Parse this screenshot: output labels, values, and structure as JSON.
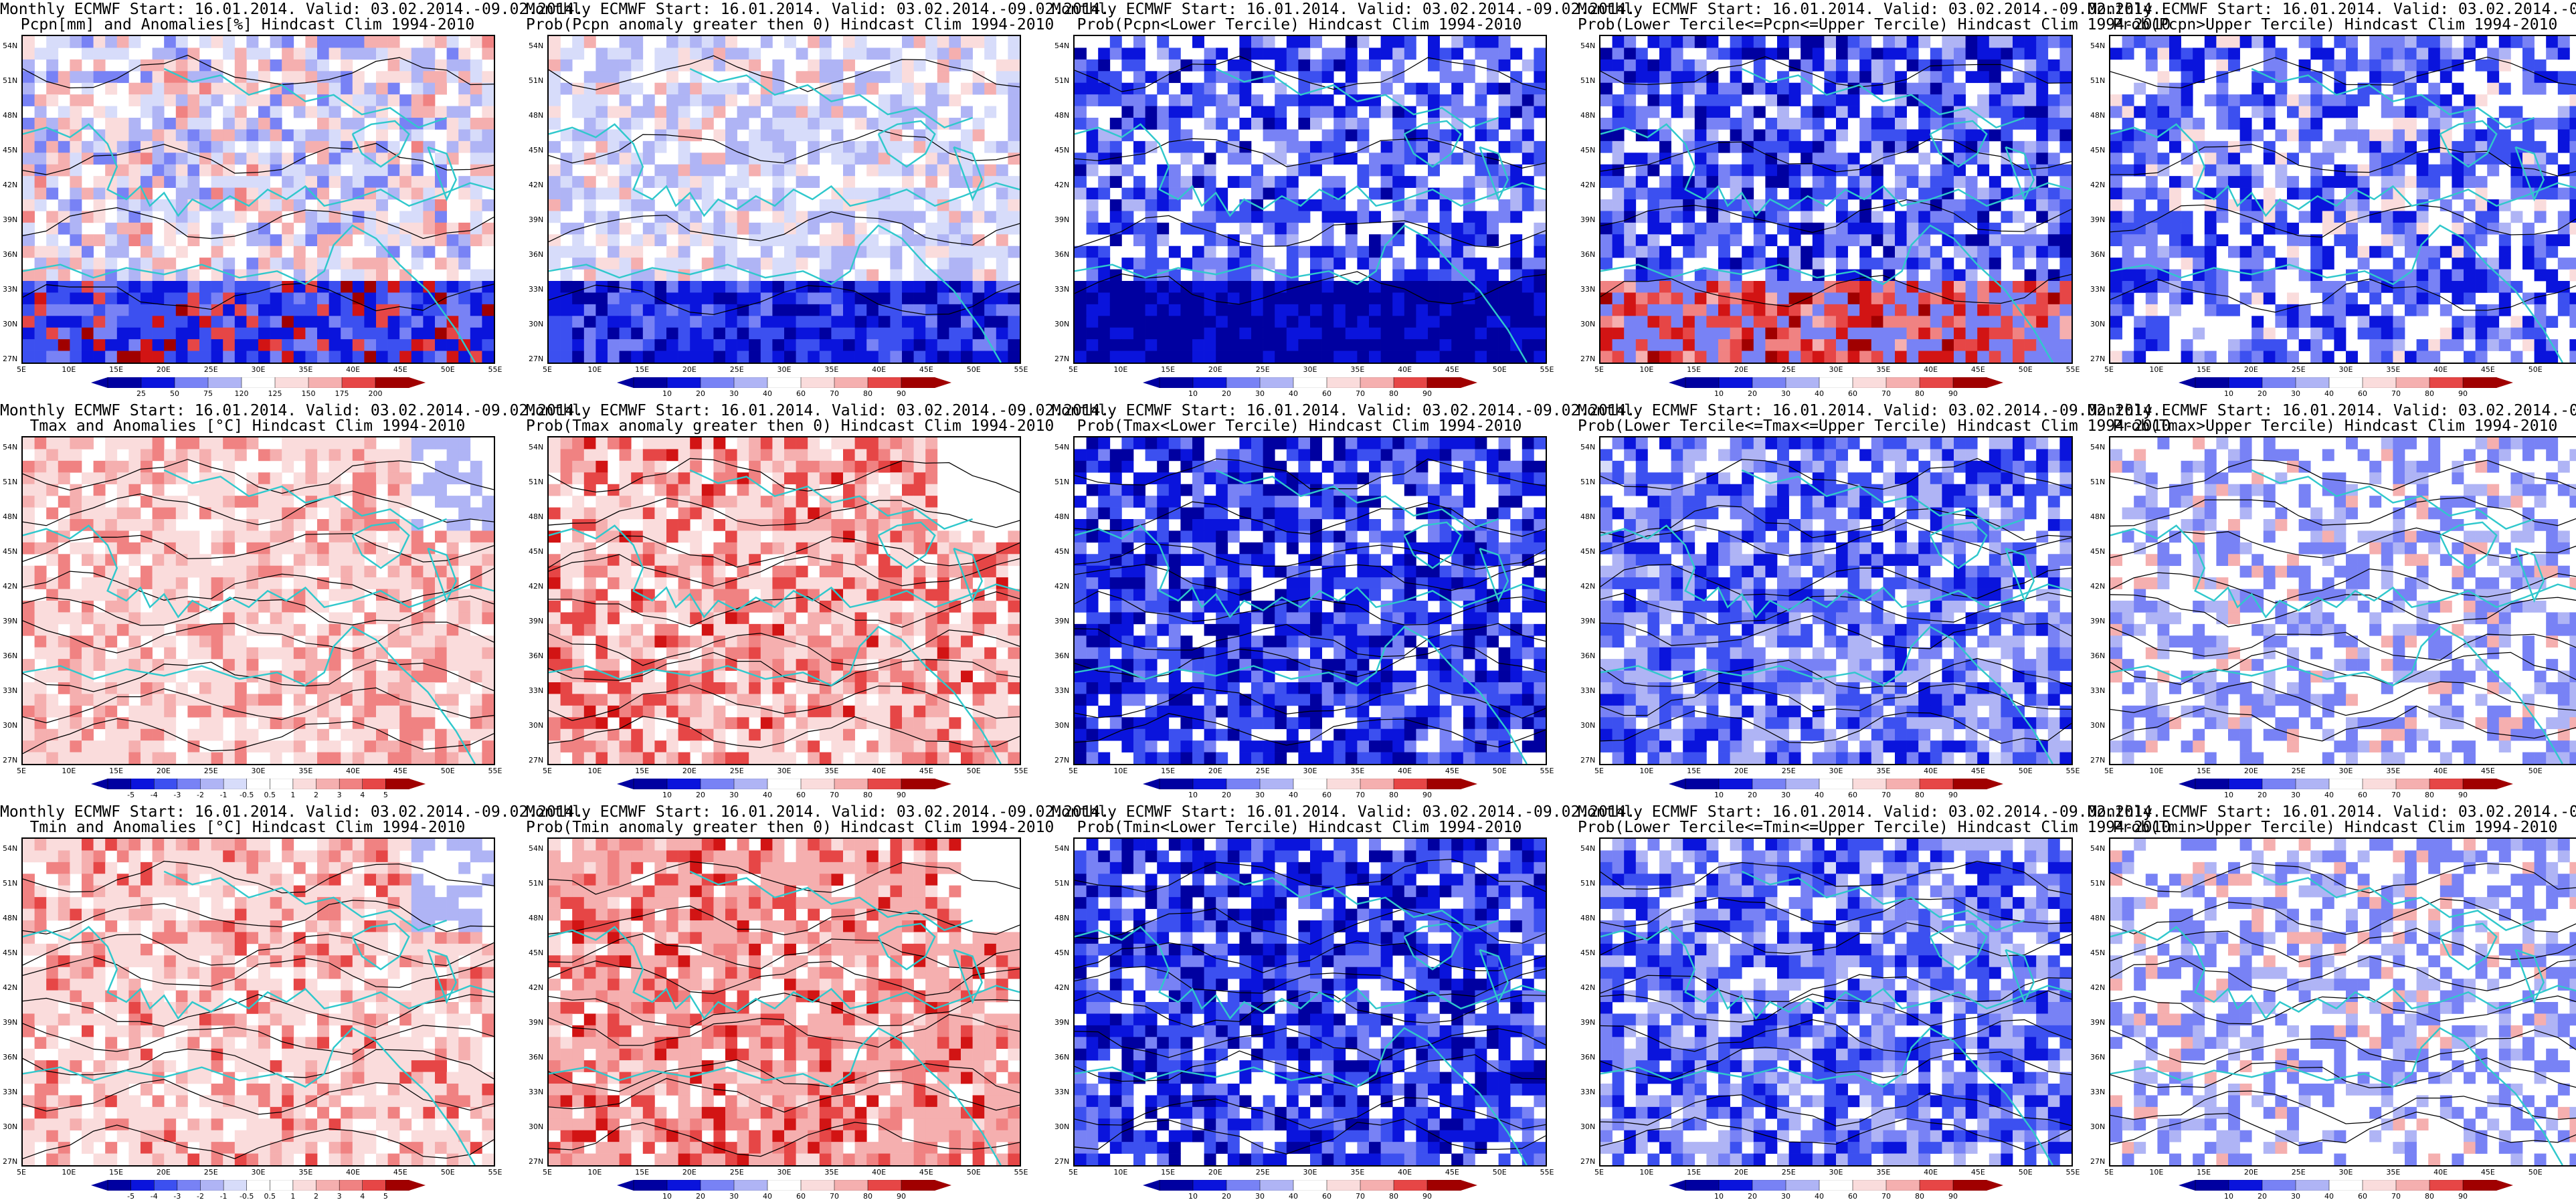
{
  "title_line1": "Monthly ECMWF Start: 16.01.2014. Valid: 03.02.2014.-09.02.2014.",
  "lat_ticks": [
    "54N",
    "51N",
    "48N",
    "45N",
    "42N",
    "39N",
    "36N",
    "33N",
    "30N",
    "27N"
  ],
  "lon_ticks": [
    "5E",
    "10E",
    "15E",
    "20E",
    "25E",
    "30E",
    "35E",
    "40E",
    "45E",
    "50E",
    "55E"
  ],
  "colors": {
    "coast": "#30c8cc",
    "contour": "#000000",
    "blue_scale": [
      "#0000a0",
      "#0a14dc",
      "#3c50f0",
      "#7882f5",
      "#afb4f5",
      "#d7dcfa"
    ],
    "red_scale": [
      "#fadcdc",
      "#f5afaf",
      "#f08282",
      "#e64646",
      "#d21414",
      "#a00000"
    ]
  },
  "colorbars": {
    "pcpn": [
      "25",
      "50",
      "75",
      "120",
      "125",
      "150",
      "175",
      "200"
    ],
    "prob": [
      "10",
      "20",
      "30",
      "40",
      "60",
      "70",
      "80",
      "90"
    ],
    "temp": [
      "-5",
      "-4",
      "-3",
      "-2",
      "-1",
      "-0.5",
      "0.5",
      "1",
      "2",
      "3",
      "4",
      "5"
    ]
  },
  "panels": [
    {
      "title": "Pcpn[mm] and Anomalies[%] Hindcast Clim 1994-2010",
      "scale": "pcpn",
      "field": "pcpn_anom"
    },
    {
      "title": "Prob(Pcpn anomaly greater then 0) Hindcast Clim 1994-2010",
      "scale": "prob",
      "field": "prob_pos"
    },
    {
      "title": "Prob(Pcpn<Lower Tercile) Hindcast Clim 1994-2010",
      "scale": "prob",
      "field": "prob_low"
    },
    {
      "title": "Prob(Lower Tercile<=Pcpn<=Upper Tercile) Hindcast Clim 1994-2010",
      "scale": "prob",
      "field": "prob_mid"
    },
    {
      "title": "Prob(Pcpn>Upper Tercile) Hindcast Clim 1994-2010",
      "scale": "prob",
      "field": "prob_up"
    },
    {
      "title": "Tmax and Anomalies [°C] Hindcast Clim 1994-2010",
      "scale": "temp",
      "field": "tmax_anom"
    },
    {
      "title": "Prob(Tmax anomaly greater then 0) Hindcast Clim 1994-2010",
      "scale": "prob",
      "field": "tmax_pos"
    },
    {
      "title": "Prob(Tmax<Lower Tercile) Hindcast Clim 1994-2010",
      "scale": "prob",
      "field": "tmax_low"
    },
    {
      "title": "Prob(Lower Tercile<=Tmax<=Upper Tercile) Hindcast Clim 1994-2010",
      "scale": "prob",
      "field": "tmax_mid"
    },
    {
      "title": "Prob(Tmax>Upper Tercile) Hindcast Clim 1994-2010",
      "scale": "prob",
      "field": "tmax_up"
    },
    {
      "title": "Tmin and Anomalies [°C] Hindcast Clim 1994-2010",
      "scale": "temp",
      "field": "tmin_anom"
    },
    {
      "title": "Prob(Tmin anomaly greater then 0) Hindcast Clim 1994-2010",
      "scale": "prob",
      "field": "tmin_pos"
    },
    {
      "title": "Prob(Tmin<Lower Tercile) Hindcast Clim 1994-2010",
      "scale": "prob",
      "field": "tmin_low"
    },
    {
      "title": "Prob(Lower Tercile<=Tmin<=Upper Tercile) Hindcast Clim 1994-2010",
      "scale": "prob",
      "field": "tmin_mid"
    },
    {
      "title": "Prob(Tmin>Upper Tercile) Hindcast Clim 1994-2010",
      "scale": "prob",
      "field": "tmin_up"
    }
  ]
}
